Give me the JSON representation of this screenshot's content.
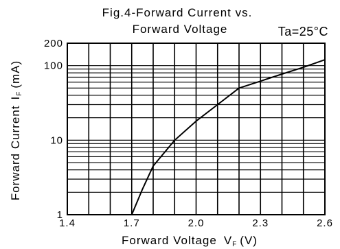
{
  "chart_data": {
    "type": "line",
    "title_line1": "Fig.4-Forward Current vs.",
    "title_line2": "Forward Voltage",
    "condition": "Ta=25°C",
    "xlabel": "Forward Voltage",
    "xlabel_symbol": "V",
    "xlabel_subscript": "F",
    "xlabel_unit": "(V)",
    "ylabel": "Forward Current",
    "ylabel_symbol": "I",
    "ylabel_subscript": "F",
    "ylabel_unit": "(mA)",
    "xlim": [
      1.4,
      2.6
    ],
    "ylim": [
      1,
      200
    ],
    "yscale": "log",
    "grid": true,
    "x_ticks": [
      1.4,
      1.7,
      2.0,
      2.3,
      2.6
    ],
    "x_tick_labels": [
      "1.4",
      "1.7",
      "2.0",
      "2.3",
      "2.6"
    ],
    "y_ticks": [
      1,
      10,
      100,
      200
    ],
    "y_tick_labels": [
      "1",
      "10",
      "100",
      "200"
    ],
    "x_grid": [
      1.5,
      1.6,
      1.7,
      1.8,
      1.9,
      2.0,
      2.1,
      2.2,
      2.3,
      2.4,
      2.5,
      2.6
    ],
    "y_grid": [
      2,
      3,
      4,
      5,
      6,
      7,
      8,
      9,
      10,
      20,
      30,
      40,
      50,
      60,
      70,
      80,
      90,
      100,
      200
    ],
    "series": [
      {
        "x": [
          1.7,
          1.75,
          1.8,
          1.9,
          2.0,
          2.1,
          2.2,
          2.3,
          2.4,
          2.5,
          2.6
        ],
        "y": [
          1.0,
          2.2,
          4.5,
          10.0,
          18.0,
          30.0,
          50.0,
          62.0,
          77.0,
          95.0,
          120.0
        ]
      }
    ]
  }
}
